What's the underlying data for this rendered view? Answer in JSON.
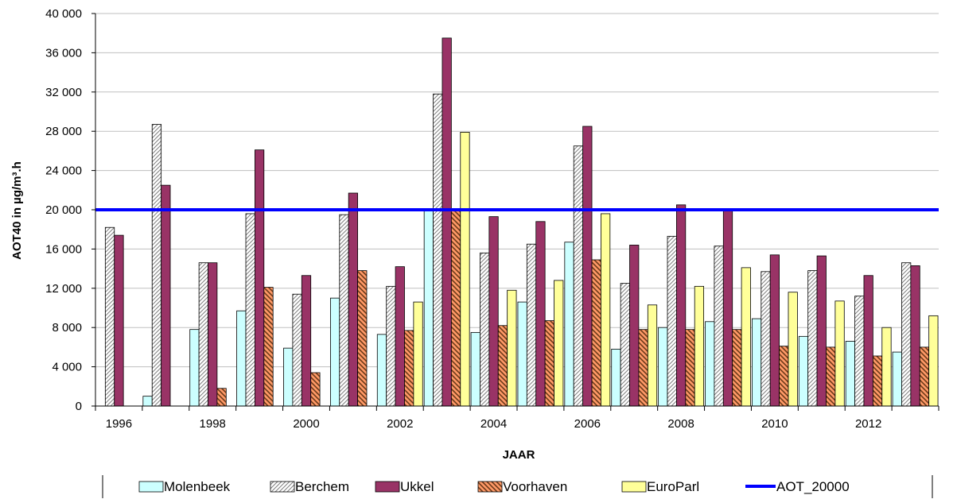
{
  "chart_data": {
    "type": "bar",
    "title": "",
    "xlabel": "JAAR",
    "ylabel": "AOT40 in µg/m³.h",
    "ylim": [
      0,
      40000
    ],
    "yticks": [
      0,
      4000,
      8000,
      12000,
      16000,
      20000,
      24000,
      28000,
      32000,
      36000,
      40000
    ],
    "ytick_labels": [
      "0",
      "4 000",
      "8 000",
      "12 000",
      "16 000",
      "20 000",
      "24 000",
      "28 000",
      "32 000",
      "36 000",
      "40 000"
    ],
    "categories": [
      "1996",
      "1997",
      "1998",
      "1999",
      "2000",
      "2001",
      "2002",
      "2003",
      "2004",
      "2005",
      "2006",
      "2007",
      "2008",
      "2009",
      "2010",
      "2011",
      "2012",
      "2013"
    ],
    "xtick_labels": [
      "1996",
      "1998",
      "2000",
      "2002",
      "2004",
      "2006",
      "2008",
      "2010",
      "2012"
    ],
    "grid": true,
    "legend_position": "bottom",
    "series": [
      {
        "name": "Molenbeek",
        "color": "#ccffff",
        "pattern": "solid",
        "values": [
          null,
          1000,
          7800,
          9700,
          5900,
          11000,
          7300,
          20000,
          7500,
          10600,
          16700,
          5800,
          8000,
          8600,
          8900,
          7100,
          6600,
          5500
        ]
      },
      {
        "name": "Berchem",
        "color": "#ffffff",
        "pattern": "hatch",
        "values": [
          18200,
          28700,
          14600,
          19600,
          11400,
          19500,
          12200,
          31800,
          15600,
          16500,
          26500,
          12500,
          17300,
          16300,
          13700,
          13800,
          11200,
          14600
        ]
      },
      {
        "name": "Ukkel",
        "color": "#993366",
        "pattern": "solid",
        "values": [
          17400,
          22500,
          14600,
          26100,
          13300,
          21700,
          14200,
          37500,
          19300,
          18800,
          28500,
          16400,
          20500,
          20000,
          15400,
          15300,
          13300,
          14300
        ]
      },
      {
        "name": "Voorhaven",
        "color": "#ff9966",
        "pattern": "crosshatch",
        "values": [
          null,
          null,
          1800,
          12100,
          3400,
          13800,
          7700,
          20000,
          8200,
          8700,
          14900,
          7800,
          7800,
          7800,
          6100,
          6000,
          5100,
          6000
        ]
      },
      {
        "name": "EuroParl",
        "color": "#ffff99",
        "pattern": "solid",
        "values": [
          null,
          null,
          null,
          null,
          null,
          null,
          10600,
          27900,
          11800,
          12800,
          19600,
          10300,
          12200,
          14100,
          11600,
          10700,
          8000,
          9200
        ]
      }
    ],
    "reference_line": {
      "name": "AOT_20000",
      "value": 20000,
      "color": "#0000ff"
    }
  }
}
